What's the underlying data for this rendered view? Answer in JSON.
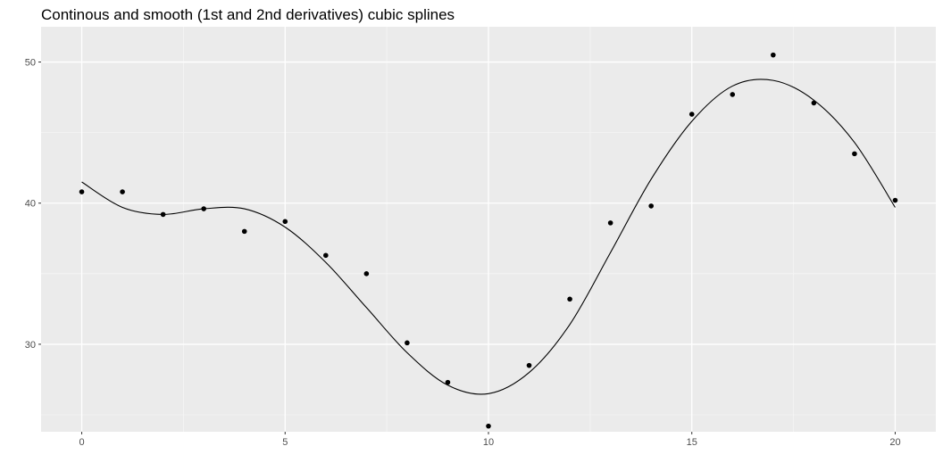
{
  "chart_data": {
    "type": "scatter",
    "title": "Continous and smooth (1st and 2nd derivatives) cubic splines",
    "xlabel": "",
    "ylabel": "",
    "xlim": [
      -1,
      21
    ],
    "ylim": [
      23.8,
      52.5
    ],
    "x_ticks": [
      0,
      5,
      10,
      15,
      20
    ],
    "y_ticks": [
      30,
      40,
      50
    ],
    "grid": true,
    "legend": "none",
    "series": [
      {
        "kind": "points",
        "x": [
          0,
          1,
          2,
          3,
          4,
          5,
          6,
          7,
          8,
          9,
          10,
          11,
          12,
          13,
          14,
          15,
          16,
          17,
          18,
          19,
          20
        ],
        "y": [
          40.8,
          40.8,
          39.2,
          39.6,
          38.0,
          38.7,
          36.3,
          35.0,
          30.1,
          27.3,
          24.2,
          28.5,
          33.2,
          38.6,
          39.8,
          46.3,
          47.7,
          50.5,
          47.1,
          43.5,
          40.2
        ]
      },
      {
        "kind": "spline",
        "x": [
          0,
          1,
          2,
          3,
          4,
          5,
          6,
          7,
          8,
          9,
          10,
          11,
          12,
          13,
          14,
          15,
          16,
          17,
          18,
          19,
          20
        ],
        "y": [
          41.5,
          39.7,
          39.2,
          39.6,
          39.6,
          38.3,
          35.8,
          32.6,
          29.4,
          27.1,
          26.5,
          28.0,
          31.4,
          36.5,
          41.7,
          45.8,
          48.3,
          48.7,
          47.3,
          44.3,
          39.7
        ]
      }
    ]
  },
  "colors": {
    "panel": "#ebebeb",
    "grid_major": "#ffffff",
    "grid_minor": "#f5f5f5",
    "ink": "#000000",
    "tick_text": "#4d4d4d"
  }
}
